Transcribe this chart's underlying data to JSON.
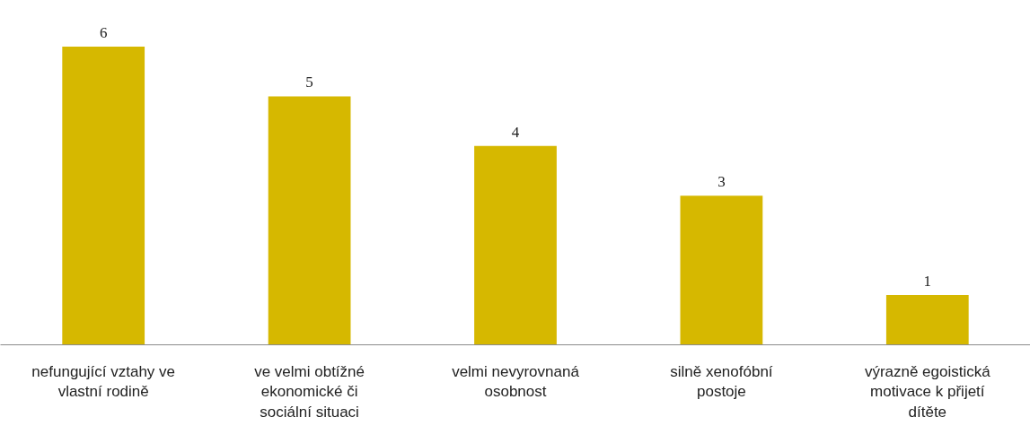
{
  "chart_data": {
    "type": "bar",
    "categories": [
      "nefungující vztahy ve vlastní rodině",
      "ve velmi obtížné ekonomické či sociální situaci",
      "velmi nevyrovnaná osobnost",
      "silně xenofóbní postoje",
      "výrazně egoistická motivace k přijetí dítěte"
    ],
    "values": [
      6,
      5,
      4,
      3,
      1
    ],
    "color": "#d6b800",
    "data_labels": true
  }
}
